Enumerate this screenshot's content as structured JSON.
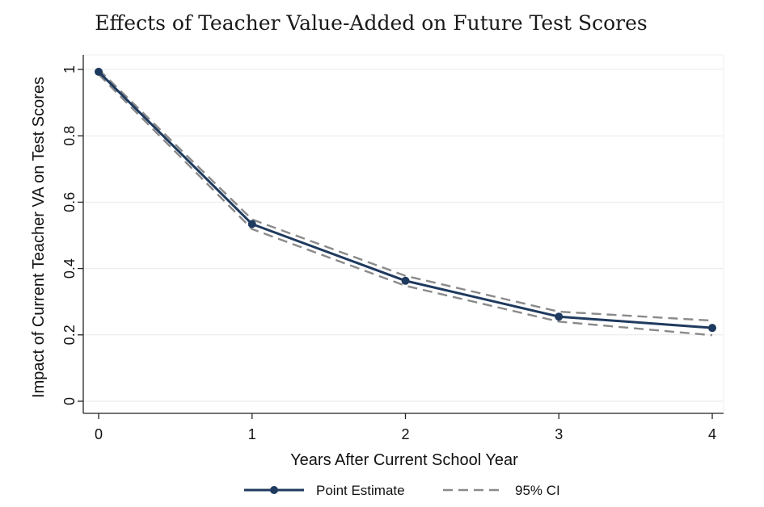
{
  "chart_data": {
    "type": "line",
    "title": "Effects of Teacher Value-Added on Future Test Scores",
    "xlabel": "Years After Current School Year",
    "ylabel": "Impact of Current Teacher VA on Test Scores",
    "x": [
      0,
      1,
      2,
      3,
      4
    ],
    "xticks": [
      "0",
      "1",
      "2",
      "3",
      "4"
    ],
    "yticks": [
      "0",
      "0.2",
      "0.4",
      "0.6",
      "0.8",
      "1"
    ],
    "ytick_values": [
      0,
      0.2,
      0.4,
      0.6,
      0.8,
      1
    ],
    "xlim": [
      0,
      4
    ],
    "ylim": [
      0,
      1
    ],
    "grid": true,
    "legend_position": "bottom",
    "series": [
      {
        "name": "Point Estimate",
        "values": [
          0.993,
          0.534,
          0.363,
          0.255,
          0.221
        ],
        "style": "solid",
        "marker": "circle",
        "color": "#1f3a5f"
      },
      {
        "name": "95% CI",
        "values": [
          1.0,
          0.548,
          0.378,
          0.27,
          0.243
        ],
        "style": "dashed",
        "color": "#8a8a8a"
      },
      {
        "name": "",
        "values": [
          0.985,
          0.519,
          0.348,
          0.24,
          0.199
        ],
        "style": "dashed",
        "color": "#8a8a8a"
      }
    ],
    "legend": [
      {
        "label": "Point Estimate",
        "style": "solid",
        "marker": "circle",
        "color": "#1f3a5f"
      },
      {
        "label": "95% CI",
        "style": "dashed",
        "color": "#8a8a8a"
      }
    ]
  }
}
